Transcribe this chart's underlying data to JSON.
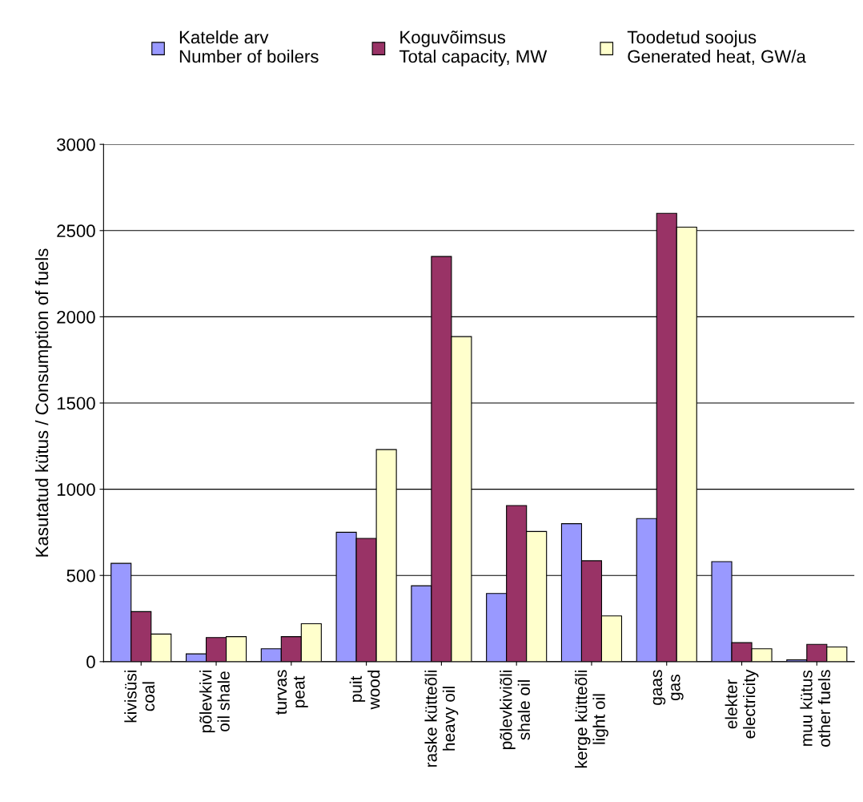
{
  "chart_data": {
    "type": "bar",
    "ylabel": "Kasutatud kütus / Consumption of fuels",
    "categories": [
      "kivisüsi\ncoal",
      "põlevkivi\noil shale",
      "turvas\npeat",
      "puit\nwood",
      "raske kütteõli\nheavy oil",
      "põlevkiviõli\nshale oil",
      "kerge kütteõli\nlight oil",
      "gaas\ngas",
      "elekter\nelectricity",
      "muu kütus\nother fuels"
    ],
    "series": [
      {
        "name": "Katelde arv\nNumber of boilers",
        "color": "#9999ff",
        "values": [
          570,
          45,
          75,
          750,
          440,
          395,
          800,
          830,
          580,
          10
        ]
      },
      {
        "name": "Koguvõimsus\nTotal capacity, MW",
        "color": "#993366",
        "values": [
          290,
          140,
          145,
          715,
          2350,
          905,
          585,
          2600,
          110,
          100
        ]
      },
      {
        "name": "Toodetud soojus\nGenerated heat, GW/a",
        "color": "#ffffcc",
        "values": [
          160,
          145,
          220,
          1230,
          1885,
          755,
          265,
          2520,
          75,
          85
        ]
      }
    ],
    "ylim": [
      0,
      3000
    ],
    "yticks": [
      0,
      500,
      1000,
      1500,
      2000,
      2500,
      3000
    ],
    "grid": "y",
    "legend": "top"
  }
}
